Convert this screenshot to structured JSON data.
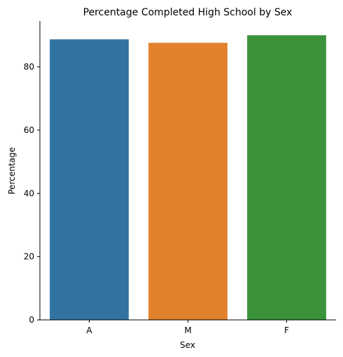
{
  "chart_data": {
    "type": "bar",
    "title": "Percentage Completed High School by Sex",
    "xlabel": "Sex",
    "ylabel": "Percentage",
    "categories": [
      "A",
      "M",
      "F"
    ],
    "values": [
      88.7,
      87.6,
      90.0
    ],
    "colors": [
      "#3274a1",
      "#e1812c",
      "#3a923a"
    ],
    "ylim": [
      0,
      94.5
    ],
    "yticks": [
      0,
      20,
      40,
      60,
      80
    ],
    "ytick_labels": [
      "0",
      "20",
      "40",
      "60",
      "80"
    ],
    "grid": false,
    "legend": "none"
  }
}
